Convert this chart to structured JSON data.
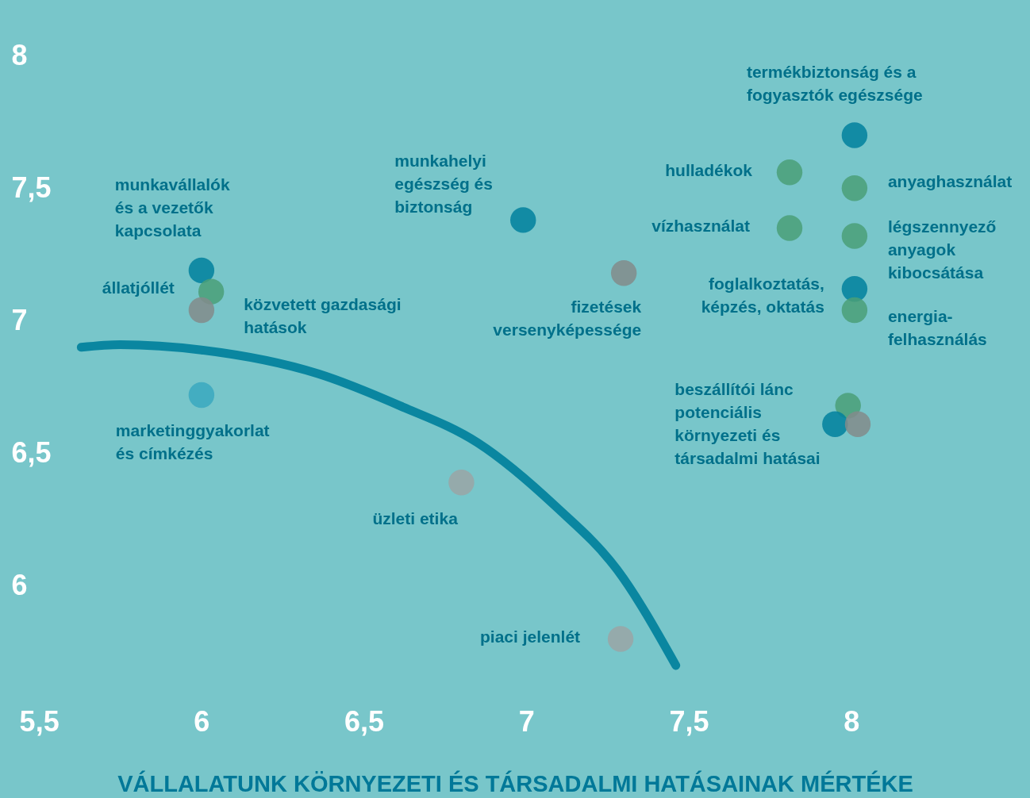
{
  "chart_data": {
    "type": "scatter",
    "xlabel": "VÁLLALATUNK KÖRNYEZETI ÉS TÁRSADALMI HATÁSAINAK MÉRTÉKE",
    "xlim": [
      5.38,
      8.55
    ],
    "ylim": [
      5.2,
      8.21
    ],
    "xticks": [
      {
        "value": 5.5,
        "label": "5,5"
      },
      6,
      {
        "value": 6.5,
        "label": "6,5"
      },
      7,
      {
        "value": 7.5,
        "label": "7,5"
      },
      8
    ],
    "yticks": [
      6,
      {
        "value": 6.5,
        "label": "6,5"
      },
      7,
      {
        "value": 7.5,
        "label": "7,5"
      },
      8
    ],
    "series": [
      {
        "type": "line",
        "color": "#0a86a0",
        "x": [
          5.63,
          5.75,
          6.0,
          6.36,
          6.61,
          6.85,
          7.09,
          7.28,
          7.46
        ],
        "values": [
          6.9,
          6.91,
          6.89,
          6.8,
          6.68,
          6.54,
          6.3,
          6.06,
          5.7
        ]
      },
      {
        "marker": "circle",
        "x": [
          8.01,
          7.81,
          8.01,
          7.81,
          8.01,
          8.01,
          8.01,
          6.99,
          7.3,
          6.0,
          6.03,
          6.0,
          6.0,
          6.8,
          7.29,
          7.99,
          7.95,
          8.02
        ],
        "values": [
          7.7,
          7.56,
          7.5,
          7.35,
          7.32,
          7.12,
          7.04,
          7.38,
          7.18,
          7.19,
          7.11,
          7.04,
          6.72,
          6.39,
          5.8,
          6.68,
          6.61,
          6.61
        ],
        "colors": [
          "#00809e",
          "#4a9f78",
          "#4a9f78",
          "#4a9f78",
          "#4a9f78",
          "#00809e",
          "#4a9f78",
          "#00809e",
          "#838b8b",
          "#00809e",
          "#4a9f78",
          "#838b8b",
          "#3aa8c0",
          "#9aa5a6",
          "#9aa5a6",
          "#4a9f78",
          "#00809e",
          "#838b8b"
        ]
      }
    ],
    "annotations": [
      {
        "text": "termékbiztonság és a\nfogyasztók egészsége",
        "x": 8.01,
        "y": 7.7
      },
      {
        "text": "hulladékok",
        "x": 7.81,
        "y": 7.56
      },
      {
        "text": "anyaghasználat",
        "x": 8.01,
        "y": 7.5
      },
      {
        "text": "vízhasználat",
        "x": 7.81,
        "y": 7.35
      },
      {
        "text": "légszennyező\nanyagok\nkibocsátása",
        "x": 8.01,
        "y": 7.32
      },
      {
        "text": "foglalkoztatás,\nképzés, oktatás",
        "x": 8.01,
        "y": 7.12
      },
      {
        "text": "energia-\nfelhasználás",
        "x": 8.01,
        "y": 7.04
      },
      {
        "text": "munkahelyi\negészség és\nbiztonság",
        "x": 6.99,
        "y": 7.38
      },
      {
        "text": "fizetések\nversenyképessége",
        "x": 7.3,
        "y": 7.18
      },
      {
        "text": "munkavállalók\nés a vezetők\nkapcsolata",
        "x": 6.0,
        "y": 7.19
      },
      {
        "text": "állatjóllét",
        "x": 6.0,
        "y": 7.04
      },
      {
        "text": "közvetett gazdasági\nhatások",
        "x": 6.03,
        "y": 7.11
      },
      {
        "text": "marketinggyakorlat\nés címkézés",
        "x": 6.0,
        "y": 6.72
      },
      {
        "text": "üzleti etika",
        "x": 6.8,
        "y": 6.39
      },
      {
        "text": "piaci jelenlét",
        "x": 7.29,
        "y": 5.8
      },
      {
        "text": "beszállítói lánc\npotenciális\nkörnyezeti és\ntársadalmi hatásai",
        "x": 7.95,
        "y": 6.61
      }
    ]
  }
}
